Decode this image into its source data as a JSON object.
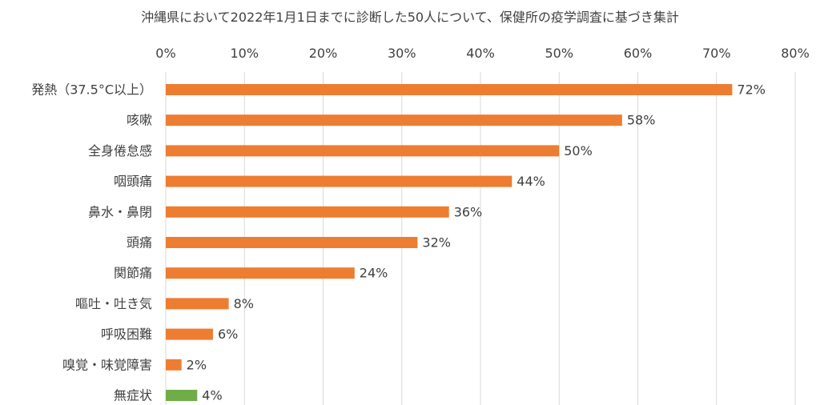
{
  "chart_data": {
    "type": "bar",
    "orientation": "horizontal",
    "title": "沖縄県において2022年1月1日までに診断した50人について、保健所の疫学調査に基づき集計",
    "categories": [
      "発熱（37.5°C以上）",
      "咳嗽",
      "全身倦怠感",
      "咽頭痛",
      "鼻水・鼻閉",
      "頭痛",
      "関節痛",
      "嘔吐・吐き気",
      "呼吸困難",
      "嗅覚・味覚障害",
      "無症状"
    ],
    "values": [
      72,
      58,
      50,
      44,
      36,
      32,
      24,
      8,
      6,
      2,
      4
    ],
    "value_labels": [
      "72%",
      "58%",
      "50%",
      "44%",
      "36%",
      "32%",
      "24%",
      "8%",
      "6%",
      "2%",
      "4%"
    ],
    "xlim": [
      0,
      80
    ],
    "x_ticks": [
      0,
      10,
      20,
      30,
      40,
      50,
      60,
      70,
      80
    ],
    "x_tick_labels": [
      "0%",
      "10%",
      "20%",
      "30%",
      "40%",
      "50%",
      "60%",
      "70%",
      "80%"
    ],
    "x_axis_position": "top",
    "grid": true,
    "legend": "none",
    "colors": {
      "default": "#ed7d31",
      "highlight": "#70ad47",
      "grid": "#d9d9d9",
      "text": "#404040"
    },
    "highlight_category": "無症状"
  }
}
